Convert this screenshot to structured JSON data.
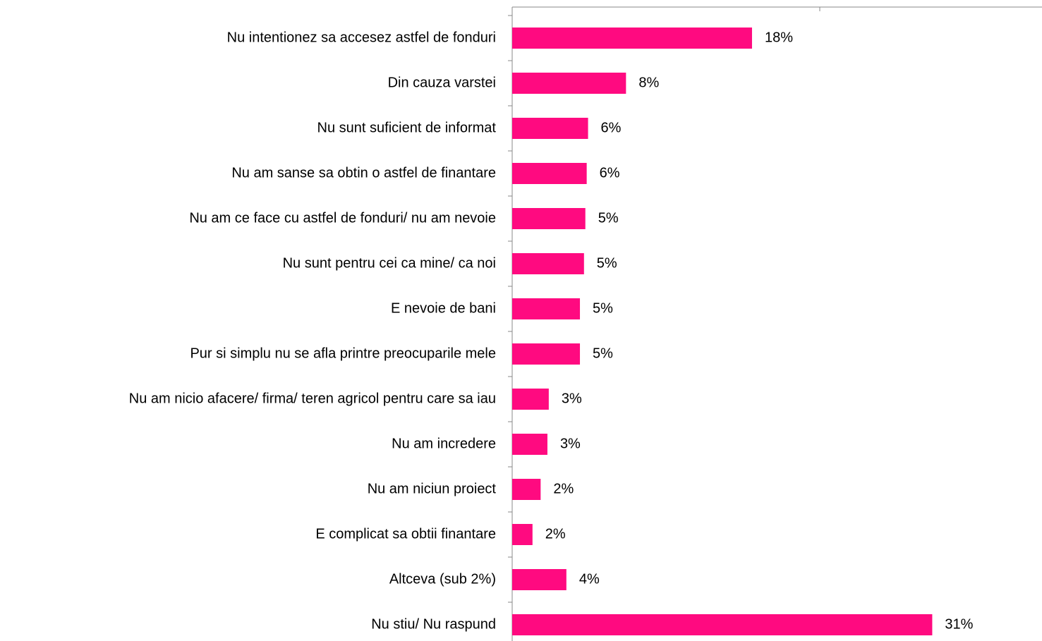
{
  "chart_data": {
    "type": "hbar",
    "categories": [
      "Nu intentionez sa accesez astfel de fonduri",
      "Din cauza varstei",
      "Nu sunt suficient de informat",
      "Nu am sanse sa obtin o astfel de finantare",
      "Nu am ce face cu astfel de fonduri/ nu am nevoie",
      "Nu sunt pentru cei ca mine/ ca noi",
      "E nevoie de bani",
      "Pur si simplu nu se afla printre preocuparile mele",
      "Nu am nicio afacere/ firma/ teren agricol pentru care sa iau",
      "Nu am incredere",
      "Nu am niciun proiect",
      "E complicat sa obtii finantare",
      "Altceva (sub 2%)",
      "Nu stiu/ Nu raspund"
    ],
    "values": [
      17.7,
      8.4,
      5.6,
      5.5,
      5.4,
      5.3,
      5.0,
      5.0,
      2.7,
      2.6,
      2.1,
      1.5,
      4.0,
      31.0
    ],
    "value_labels": [
      "18%",
      "8%",
      "6%",
      "6%",
      "5%",
      "5%",
      "5%",
      "5%",
      "3%",
      "3%",
      "2%",
      "2%",
      "4%",
      "31%"
    ],
    "color": "#ff0a80",
    "xlim": [
      0,
      39.1
    ]
  }
}
